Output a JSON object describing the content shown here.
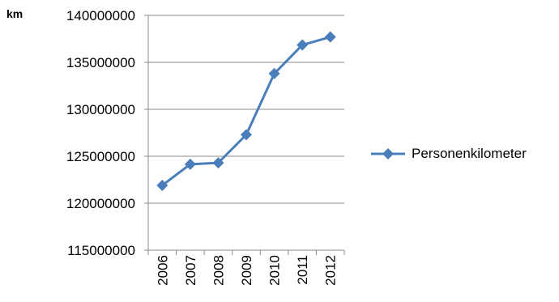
{
  "chart_data": {
    "type": "line",
    "unit_label": "km",
    "categories": [
      "2006",
      "2007",
      "2008",
      "2009",
      "2010",
      "2011",
      "2012"
    ],
    "series": [
      {
        "name": "Personenkilometer",
        "values": [
          121900000,
          124150000,
          124300000,
          127300000,
          133800000,
          136850000,
          137700000
        ],
        "color": "#4a7ebb",
        "marker": "diamond"
      }
    ],
    "yticks": [
      "140000000",
      "135000000",
      "130000000",
      "125000000",
      "120000000",
      "115000000"
    ],
    "ylim": [
      115000000,
      140000000
    ],
    "grid": true,
    "legend_position": "right"
  }
}
